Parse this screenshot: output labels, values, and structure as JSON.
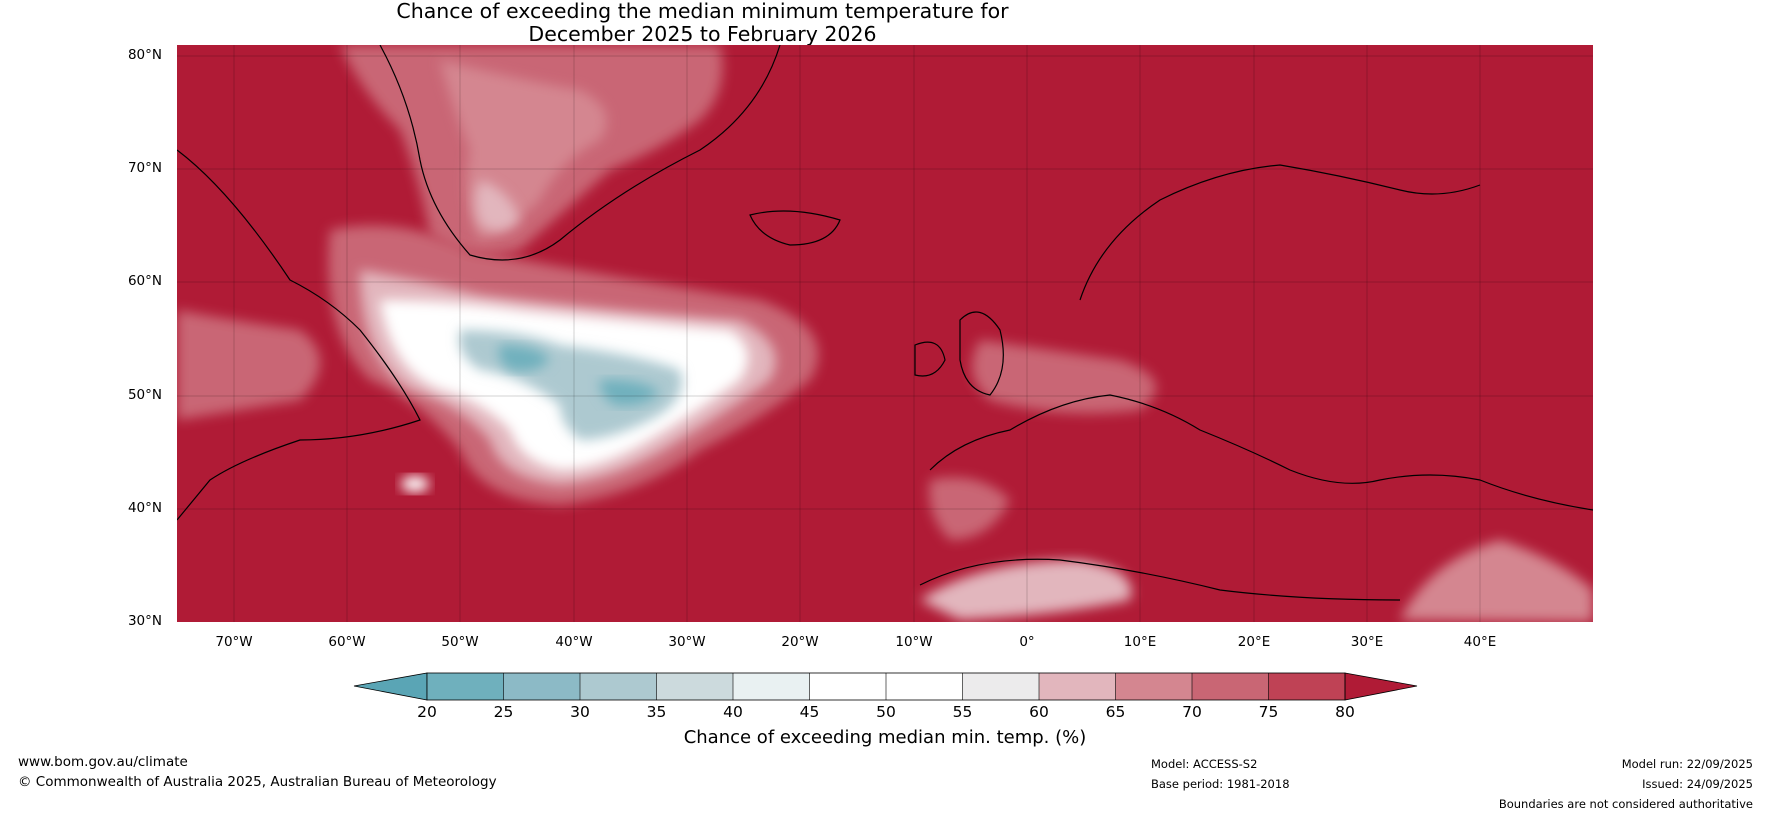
{
  "title": {
    "line1": "Chance of exceeding the median minimum temperature for",
    "line2": "December 2025 to February 2026"
  },
  "map": {
    "lat_labels": [
      "80°N",
      "70°N",
      "60°N",
      "50°N",
      "40°N",
      "30°N"
    ],
    "lon_labels": [
      "70°W",
      "60°W",
      "50°W",
      "40°W",
      "30°W",
      "20°W",
      "10°W",
      "0°",
      "10°E",
      "20°E",
      "30°E",
      "40°E"
    ],
    "extent": {
      "lon_min": -75,
      "lon_max": 50,
      "lat_min": 30,
      "lat_max": 81
    }
  },
  "colorbar": {
    "ticks": [
      "20",
      "25",
      "30",
      "35",
      "40",
      "45",
      "50",
      "55",
      "60",
      "65",
      "70",
      "75",
      "80"
    ],
    "colors": [
      "#5aa5b5",
      "#6fb0bd",
      "#8cbac6",
      "#adc9d0",
      "#ccdadd",
      "#e9f1f2",
      "#ffffff",
      "#ffffff",
      "#ecebec",
      "#e2b6bd",
      "#d48690",
      "#c96674",
      "#bf4255",
      "#b01b36"
    ],
    "label": "Chance of exceeding median min. temp. (%)"
  },
  "footer": {
    "website": "www.bom.gov.au/climate",
    "copyright": "© Commonwealth of Australia 2025, Australian Bureau of Meteorology",
    "model": "Model: ACCESS-S2",
    "base_period": "Base period: 1981-2018",
    "model_run": "Model run: 22/09/2025",
    "issued": "Issued: 24/09/2025",
    "disclaimer": "Boundaries are not considered authoritative"
  }
}
